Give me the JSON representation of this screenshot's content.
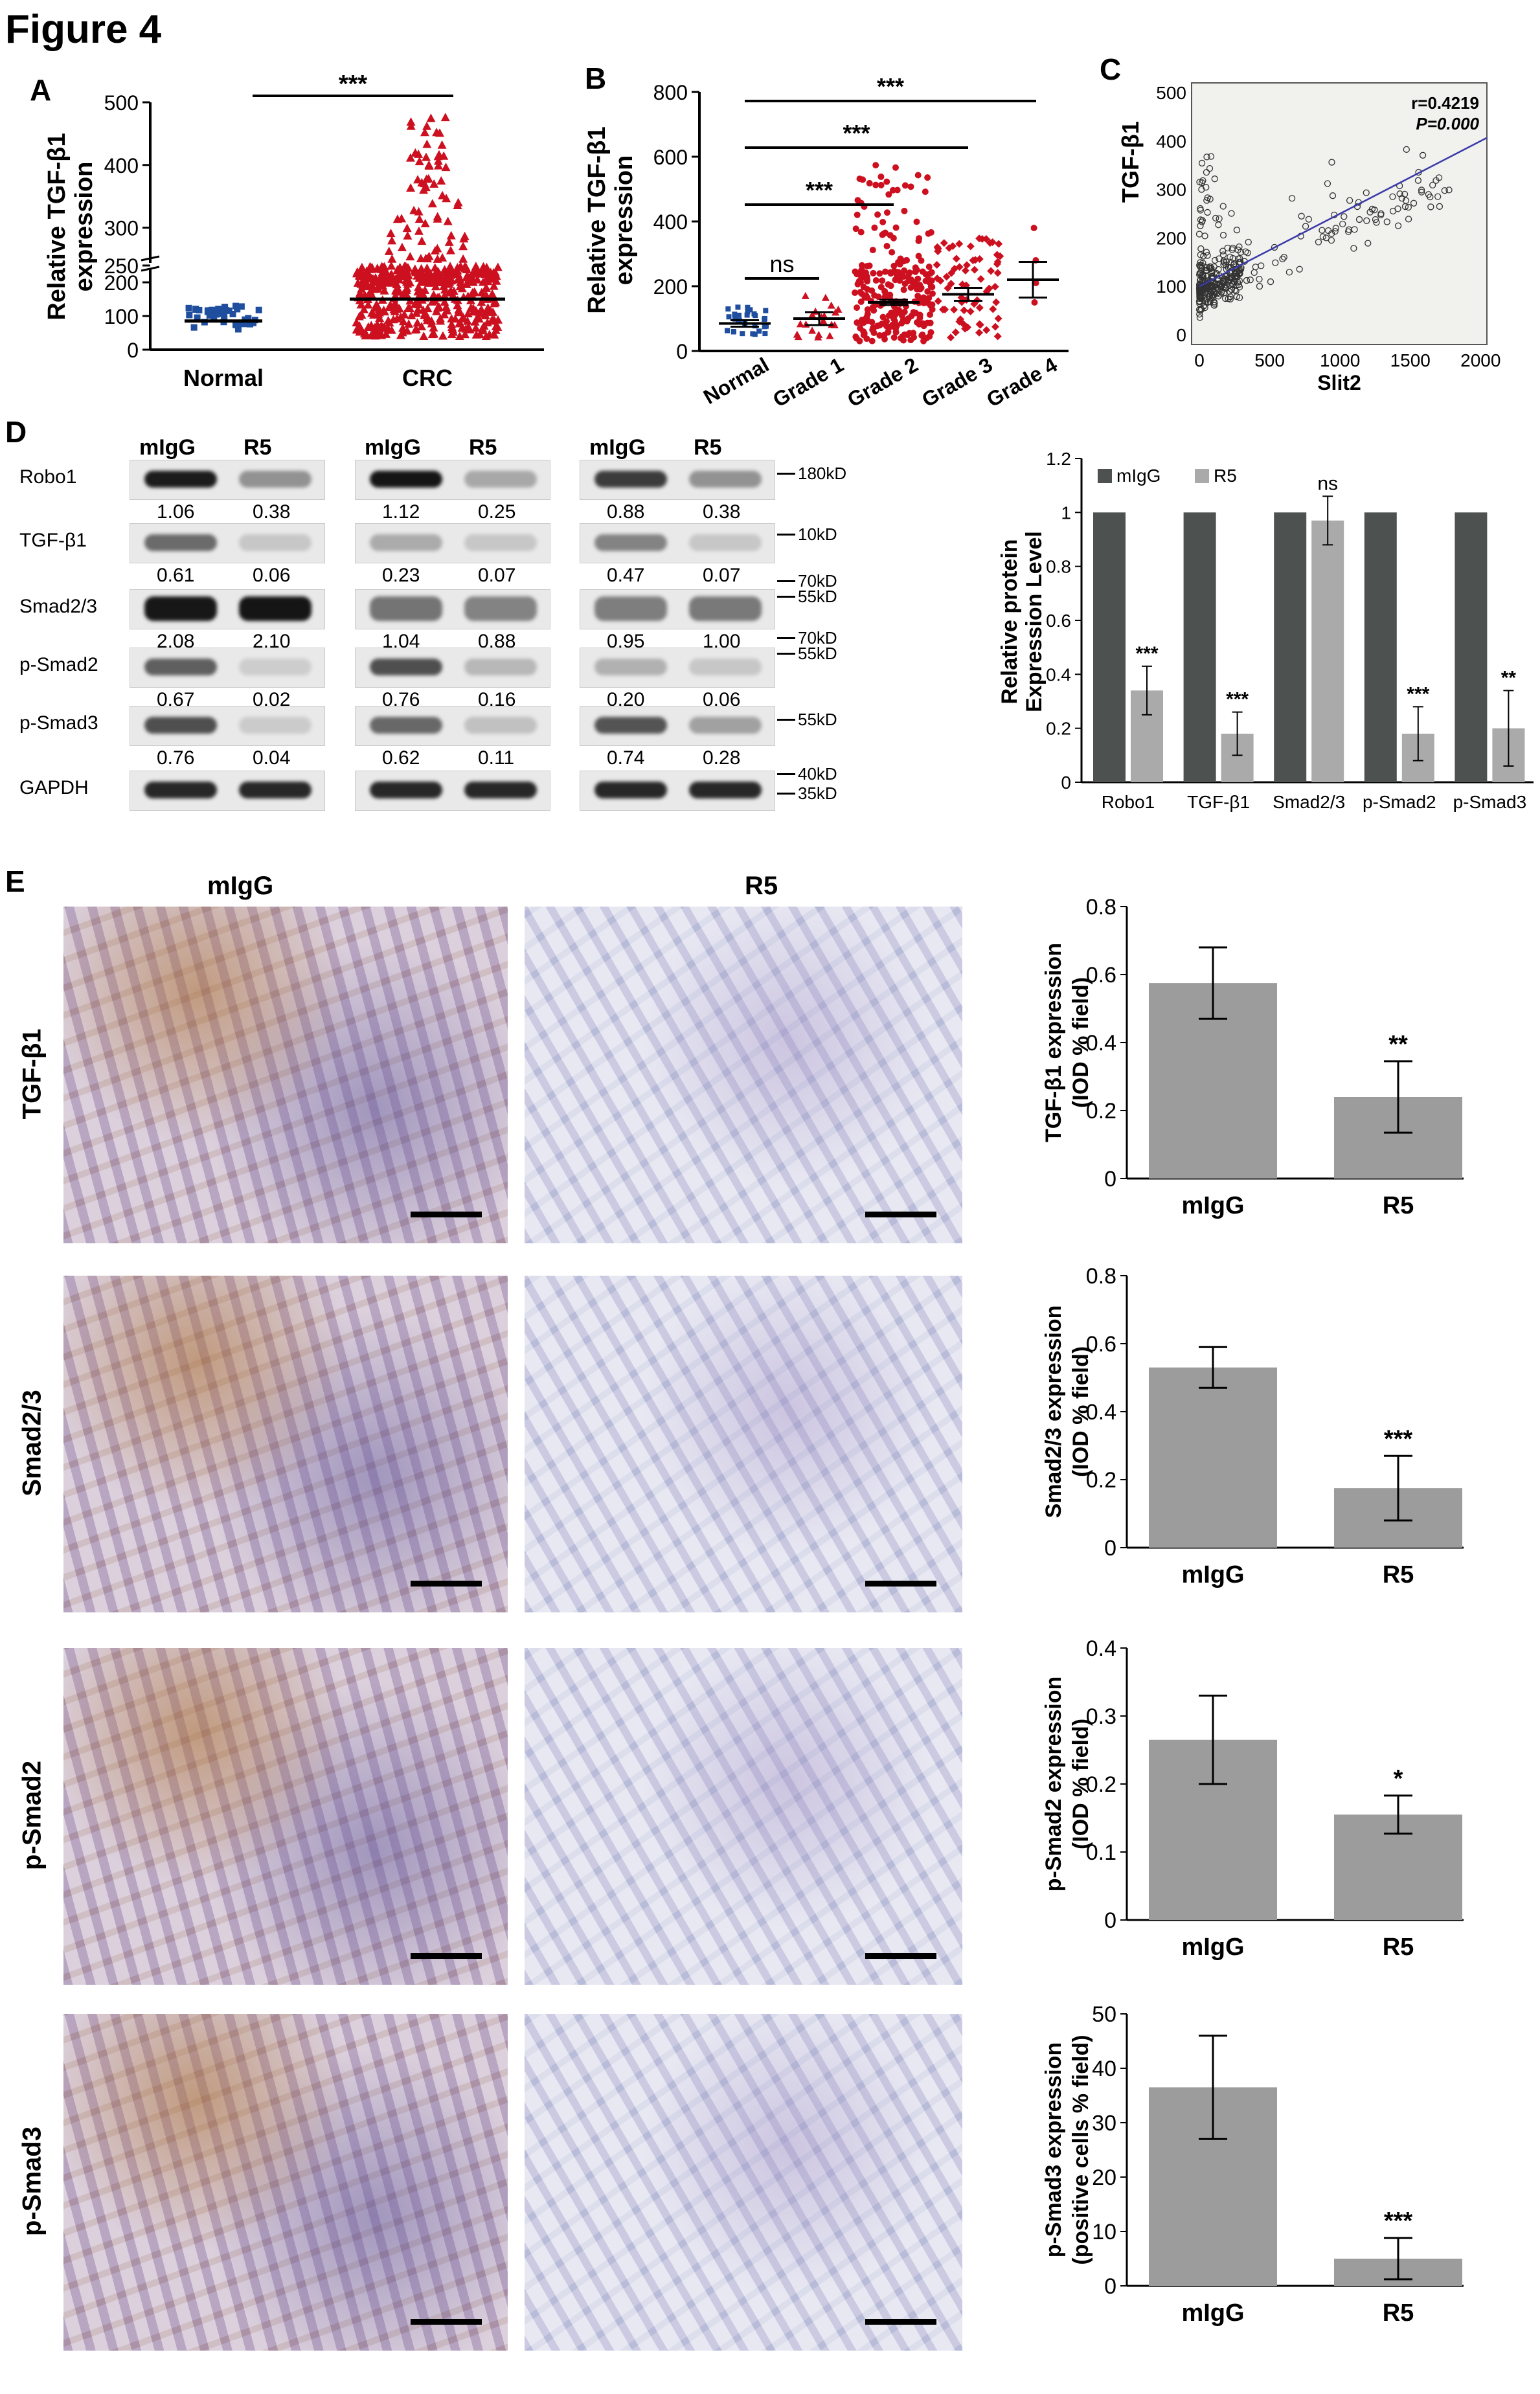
{
  "figure_title": "Figure 4",
  "panel_labels": [
    "A",
    "B",
    "C",
    "D",
    "E"
  ],
  "panel_A": {
    "ylabel": "Relative TGF-β1\nexpression",
    "yticks": [
      "0",
      "100",
      "200",
      "250",
      "300",
      "400",
      "500"
    ],
    "groups": [
      "Normal",
      "CRC"
    ],
    "significance": "***"
  },
  "panel_B": {
    "ylabel": "Relative TGF-β1\nexpression",
    "yticks": [
      "0",
      "200",
      "400",
      "600",
      "800"
    ],
    "groups": [
      "Normal",
      "Grade 1",
      "Grade 2",
      "Grade 3",
      "Grade 4"
    ],
    "comparisons": [
      "ns",
      "***",
      "***",
      "***"
    ]
  },
  "panel_C": {
    "ylabel": "TGF-β1",
    "xlabel": "Slit2",
    "yticks": [
      "0",
      "100",
      "200",
      "300",
      "400",
      "500"
    ],
    "xticks": [
      "0",
      "500",
      "1000",
      "1500",
      "2000"
    ],
    "stat_r": "r=0.4219",
    "stat_p": "P=0.000"
  },
  "panel_D": {
    "lane_headers": [
      "mIgG",
      "R5"
    ],
    "rows": [
      "Robo1",
      "TGF-β1",
      "Smad2/3",
      "p-Smad2",
      "p-Smad3",
      "GAPDH"
    ],
    "markers": [
      "180kD",
      "10kD",
      "70kD",
      "55kD",
      "70kD",
      "55kD",
      "55kD",
      "40kD",
      "35kD"
    ],
    "quant": [
      [
        [
          "1.06",
          "0.38"
        ],
        [
          "1.12",
          "0.25"
        ],
        [
          "0.88",
          "0.38"
        ]
      ],
      [
        [
          "0.61",
          "0.06"
        ],
        [
          "0.23",
          "0.07"
        ],
        [
          "0.47",
          "0.07"
        ]
      ],
      [
        [
          "2.08",
          "2.10"
        ],
        [
          "1.04",
          "0.88"
        ],
        [
          "0.95",
          "1.00"
        ]
      ],
      [
        [
          "0.67",
          "0.02"
        ],
        [
          "0.76",
          "0.16"
        ],
        [
          "0.20",
          "0.06"
        ]
      ],
      [
        [
          "0.76",
          "0.04"
        ],
        [
          "0.62",
          "0.11"
        ],
        [
          "0.74",
          "0.28"
        ]
      ]
    ]
  },
  "panel_E": {
    "column_headers": [
      "mIgG",
      "R5"
    ],
    "row_labels": [
      "TGF-β1",
      "Smad2/3",
      "p-Smad2",
      "p-Smad3"
    ]
  },
  "colors": {
    "blue_points": "#1f4e9e",
    "red_points": "#cc1020",
    "dark_bar": "#4d5150",
    "light_bar": "#a9aaa9",
    "ihc_bar": "#9c9c9c",
    "fit_line": "#3a3aa8"
  },
  "chart_data": [
    {
      "type": "scatter",
      "title": "",
      "ylabel": "Relative TGF-β1 expression",
      "categories": [
        "Normal",
        "CRC"
      ],
      "series": [
        {
          "name": "Normal",
          "mean": 85
        },
        {
          "name": "CRC",
          "mean": 150
        }
      ],
      "ylim": [
        0,
        500
      ],
      "annotations": [
        "***"
      ]
    },
    {
      "type": "scatter",
      "title": "",
      "ylabel": "Relative TGF-β1 expression",
      "categories": [
        "Normal",
        "Grade 1",
        "Grade 2",
        "Grade 3",
        "Grade 4"
      ],
      "means": [
        85,
        100,
        150,
        175,
        220
      ],
      "sem": [
        10,
        20,
        8,
        20,
        55
      ],
      "ylim": [
        0,
        800
      ],
      "annotations": [
        "ns",
        "***",
        "***",
        "***"
      ]
    },
    {
      "type": "scatter",
      "title": "",
      "xlabel": "Slit2",
      "ylabel": "TGF-β1",
      "xlim": [
        0,
        2000
      ],
      "ylim": [
        0,
        500
      ],
      "fit_line": {
        "x": [
          0,
          2000
        ],
        "y": [
          100,
          400
        ]
      },
      "annotations": [
        "r=0.4219",
        "P=0.000"
      ]
    },
    {
      "type": "bar",
      "title": "",
      "ylabel": "Relative protein Expression Level",
      "categories": [
        "Robo1",
        "TGF-β1",
        "Smad2/3",
        "p-Smad2",
        "p-Smad3"
      ],
      "series": [
        {
          "name": "mIgG",
          "values": [
            1,
            1,
            1,
            1,
            1
          ],
          "error": [
            0,
            0,
            0,
            0,
            0
          ]
        },
        {
          "name": "R5",
          "values": [
            0.34,
            0.18,
            0.97,
            0.18,
            0.2
          ],
          "error": [
            0.09,
            0.08,
            0.09,
            0.1,
            0.14
          ]
        }
      ],
      "yticks": [
        "0",
        "0.2",
        "0.4",
        "0.6",
        "0.8",
        "1",
        "1.2"
      ],
      "ylim": [
        0,
        1.2
      ],
      "significance": [
        "***",
        "***",
        "ns",
        "***",
        "**"
      ],
      "legend": "top"
    },
    {
      "type": "bar",
      "title": "",
      "ylabel": "TGF-β1 expression (IOD % field)",
      "categories": [
        "mIgG",
        "R5"
      ],
      "values": [
        0.575,
        0.24
      ],
      "error": [
        0.105,
        0.105
      ],
      "yticks": [
        "0",
        "0.2",
        "0.4",
        "0.6",
        "0.8"
      ],
      "ylim": [
        0,
        0.8
      ],
      "significance": "**"
    },
    {
      "type": "bar",
      "title": "",
      "ylabel": "Smad2/3 expression (IOD % field)",
      "categories": [
        "mIgG",
        "R5"
      ],
      "values": [
        0.53,
        0.175
      ],
      "error": [
        0.06,
        0.095
      ],
      "yticks": [
        "0",
        "0.2",
        "0.4",
        "0.6",
        "0.8"
      ],
      "ylim": [
        0,
        0.8
      ],
      "significance": "***"
    },
    {
      "type": "bar",
      "title": "",
      "ylabel": "p-Smad2 expression (IOD % field)",
      "categories": [
        "mIgG",
        "R5"
      ],
      "values": [
        0.265,
        0.155
      ],
      "error": [
        0.065,
        0.028
      ],
      "yticks": [
        "0",
        "0.1",
        "0.2",
        "0.3",
        "0.4"
      ],
      "ylim": [
        0,
        0.4
      ],
      "significance": "*"
    },
    {
      "type": "bar",
      "title": "",
      "ylabel": "p-Smad3 expression (positive cells % field)",
      "categories": [
        "mIgG",
        "R5"
      ],
      "values": [
        36.5,
        5
      ],
      "error": [
        9.5,
        3.8
      ],
      "yticks": [
        "0",
        "10",
        "20",
        "30",
        "40",
        "50"
      ],
      "ylim": [
        0,
        50
      ],
      "significance": "***"
    }
  ]
}
